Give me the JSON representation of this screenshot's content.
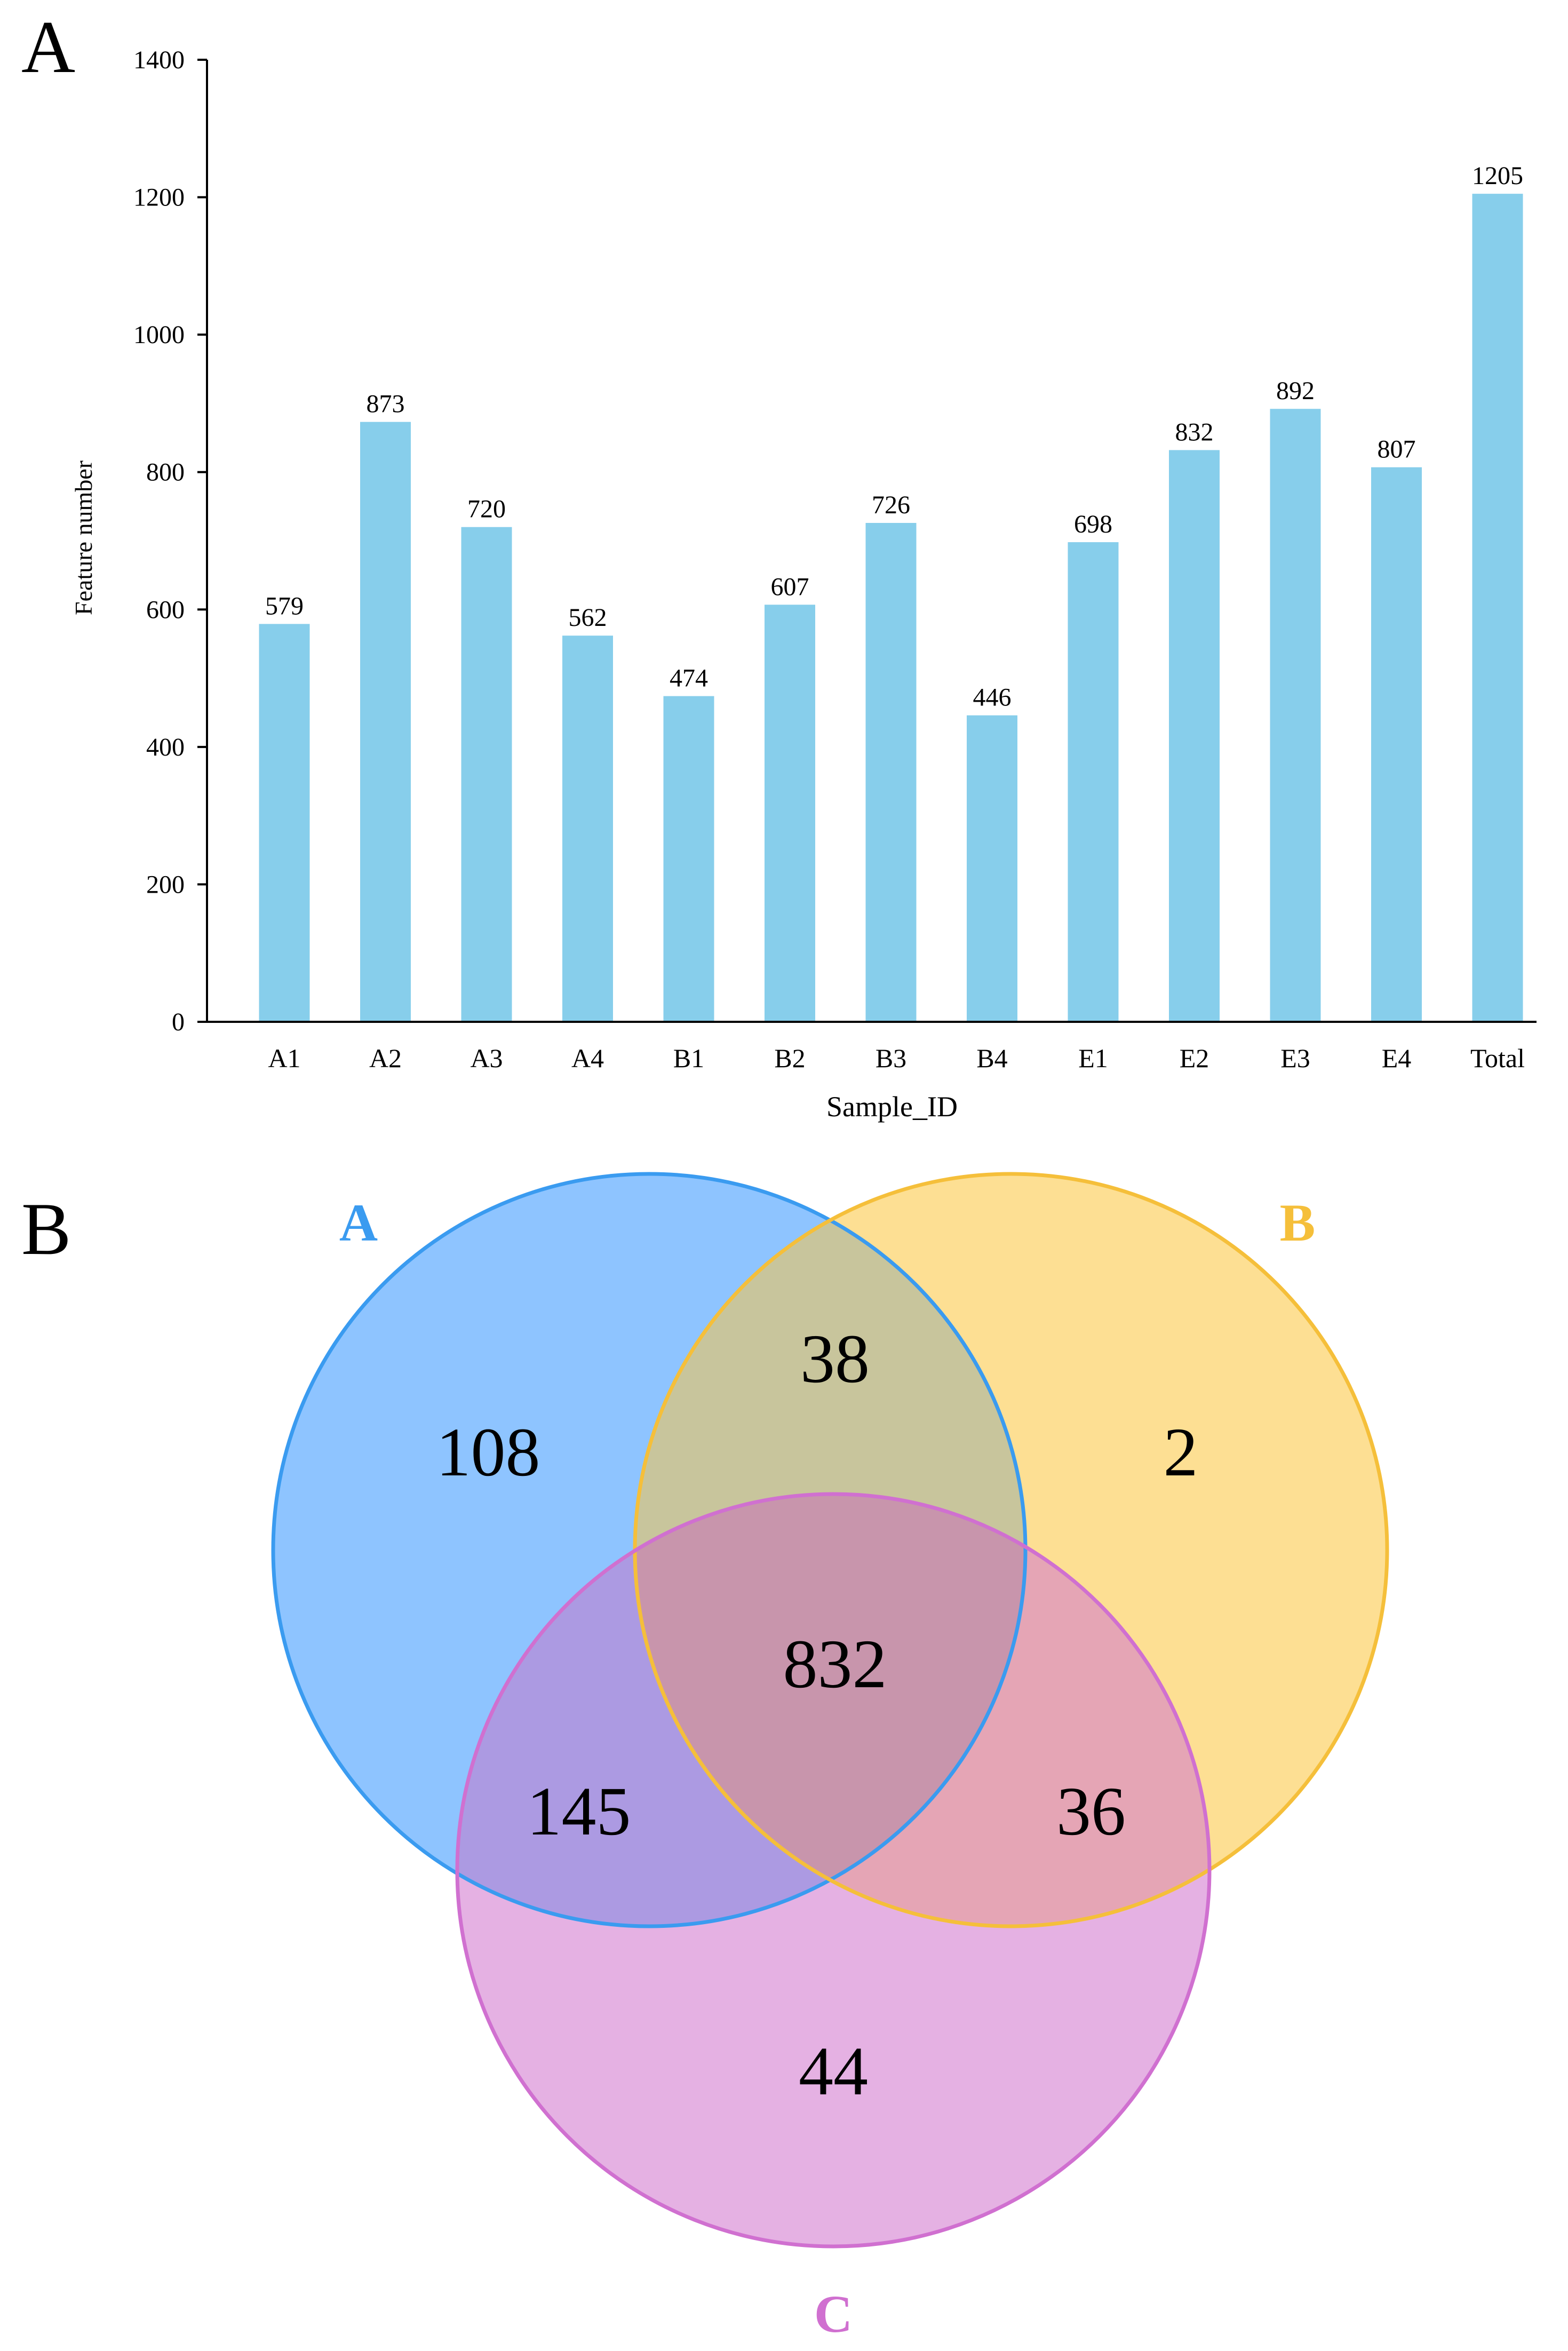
{
  "panel_a": {
    "letter": "A"
  },
  "panel_b": {
    "letter": "B"
  },
  "chart_data": [
    {
      "type": "bar",
      "title": "",
      "xlabel": "Sample_ID",
      "ylabel": "Feature number",
      "categories": [
        "A1",
        "A2",
        "A3",
        "A4",
        "B1",
        "B2",
        "B3",
        "B4",
        "E1",
        "E2",
        "E3",
        "E4",
        "Total"
      ],
      "values": [
        579,
        873,
        720,
        562,
        474,
        607,
        726,
        446,
        698,
        832,
        892,
        807,
        1205
      ],
      "value_labels": [
        "579",
        "873",
        "720",
        "562",
        "474",
        "607",
        "726",
        "446",
        "698",
        "832",
        "892",
        "807",
        "1205"
      ],
      "ylim": [
        0,
        1400
      ],
      "yticks": [
        0,
        200,
        400,
        600,
        800,
        1000,
        1200,
        1400
      ],
      "ytick_labels": [
        "0",
        "200",
        "400",
        "600",
        "800",
        "1000",
        "1200",
        "1400"
      ],
      "grid": false,
      "bar_color": "#87CEEB"
    },
    {
      "type": "venn",
      "sets": [
        {
          "name": "A",
          "label_color": "#3A9BF0",
          "fill": "#8EC4FF",
          "stroke": "#3A9BF0"
        },
        {
          "name": "B",
          "label_color": "#F5BF3A",
          "fill": "#FDDF93",
          "stroke": "#F5BF3A"
        },
        {
          "name": "C",
          "label_color": "#D070D0",
          "fill": "#E5B1E3",
          "stroke": "#D070D0"
        }
      ],
      "regions": [
        {
          "sets": [
            "A"
          ],
          "value": "108",
          "fill": "#8EC4FF"
        },
        {
          "sets": [
            "B"
          ],
          "value": "2",
          "fill": "#FDDF93"
        },
        {
          "sets": [
            "C"
          ],
          "value": "44",
          "fill": "#E5B1E3"
        },
        {
          "sets": [
            "A",
            "B"
          ],
          "value": "38",
          "fill": "#C8C59C"
        },
        {
          "sets": [
            "A",
            "C"
          ],
          "value": "145",
          "fill": "#AC9AE2"
        },
        {
          "sets": [
            "B",
            "C"
          ],
          "value": "36",
          "fill": "#E5A5B5"
        },
        {
          "sets": [
            "A",
            "B",
            "C"
          ],
          "value": "832",
          "fill": "#C895AC"
        }
      ]
    }
  ]
}
